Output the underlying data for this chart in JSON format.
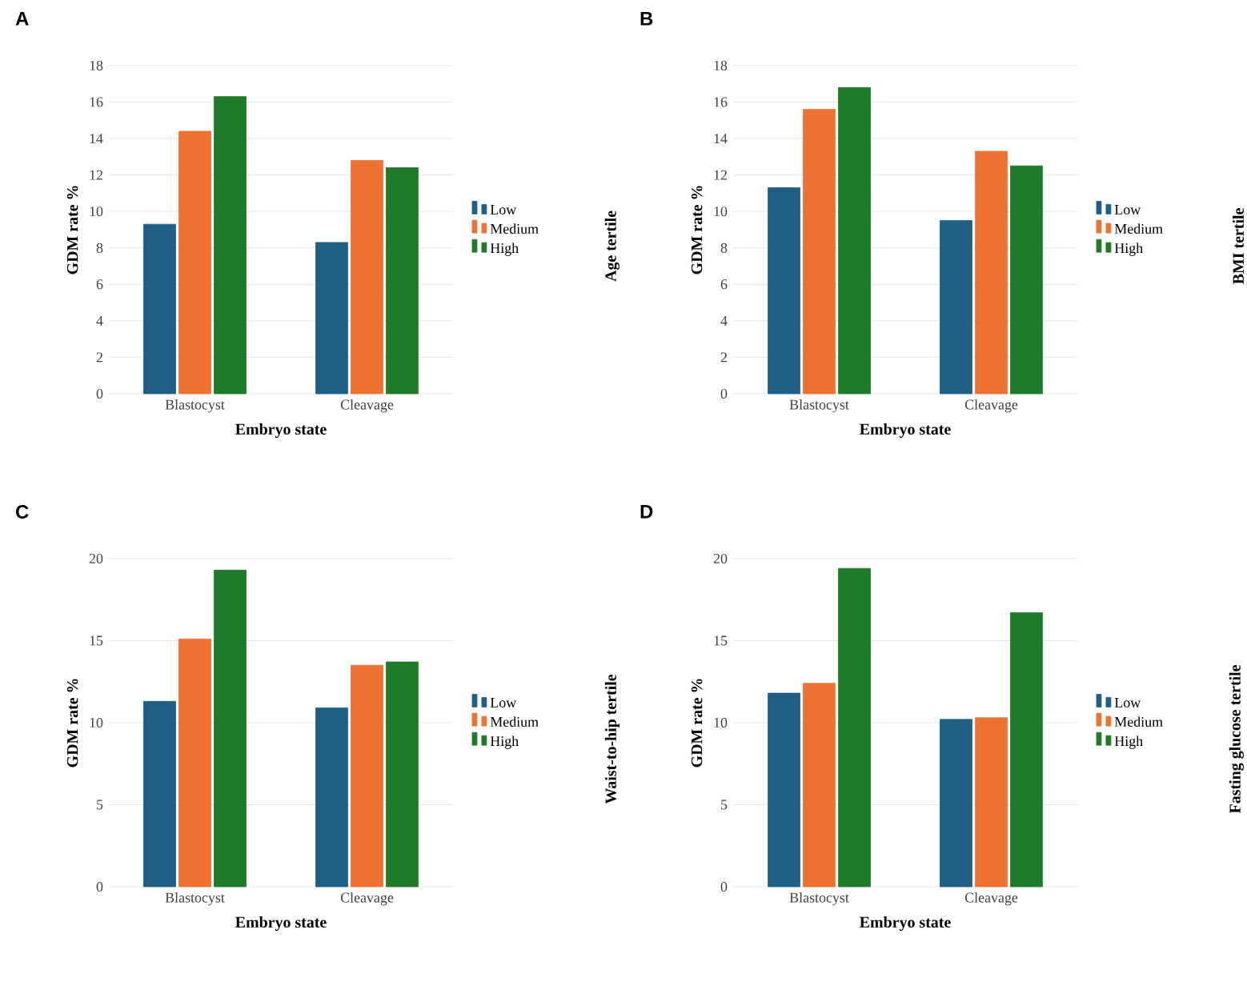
{
  "chart_data": [
    {
      "type": "bar",
      "title": "A",
      "xlabel": "Embryo state",
      "ylabel": "GDM rate %",
      "legend_title": "Age tertile",
      "categories": [
        "Blastocyst",
        "Cleavage"
      ],
      "series": [
        {
          "name": "Low",
          "color": "#1f5f86",
          "values": [
            9.3,
            8.3
          ]
        },
        {
          "name": "Medium",
          "color": "#ed7232",
          "values": [
            14.4,
            12.8
          ]
        },
        {
          "name": "High",
          "color": "#1f7a2a",
          "values": [
            16.3,
            12.4
          ]
        }
      ],
      "ylim": [
        0,
        18
      ],
      "yticks": [
        0,
        2,
        4,
        6,
        8,
        10,
        12,
        14,
        16,
        18
      ],
      "grid": "y",
      "legend": "right"
    },
    {
      "type": "bar",
      "title": "B",
      "xlabel": "Embryo state",
      "ylabel": "GDM rate %",
      "legend_title": "BMI tertile",
      "categories": [
        "Blastocyst",
        "Cleavage"
      ],
      "series": [
        {
          "name": "Low",
          "color": "#1f5f86",
          "values": [
            11.3,
            9.5
          ]
        },
        {
          "name": "Medium",
          "color": "#ed7232",
          "values": [
            15.6,
            13.3
          ]
        },
        {
          "name": "High",
          "color": "#1f7a2a",
          "values": [
            16.8,
            12.5
          ]
        }
      ],
      "ylim": [
        0,
        18
      ],
      "yticks": [
        0,
        2,
        4,
        6,
        8,
        10,
        12,
        14,
        16,
        18
      ],
      "grid": "y",
      "legend": "right"
    },
    {
      "type": "bar",
      "title": "C",
      "xlabel": "Embryo state",
      "ylabel": "GDM rate %",
      "legend_title": "Waist-to-hip tertile",
      "categories": [
        "Blastocyst",
        "Cleavage"
      ],
      "series": [
        {
          "name": "Low",
          "color": "#1f5f86",
          "values": [
            11.3,
            10.9
          ]
        },
        {
          "name": "Medium",
          "color": "#ed7232",
          "values": [
            15.1,
            13.5
          ]
        },
        {
          "name": "High",
          "color": "#1f7a2a",
          "values": [
            19.3,
            13.7
          ]
        }
      ],
      "ylim": [
        0,
        20
      ],
      "yticks": [
        0,
        5,
        10,
        15,
        20
      ],
      "grid": "y",
      "legend": "right"
    },
    {
      "type": "bar",
      "title": "D",
      "xlabel": "Embryo state",
      "ylabel": "GDM rate %",
      "legend_title": "Fasting glucose tertile",
      "categories": [
        "Blastocyst",
        "Cleavage"
      ],
      "series": [
        {
          "name": "Low",
          "color": "#1f5f86",
          "values": [
            11.8,
            10.2
          ]
        },
        {
          "name": "Medium",
          "color": "#ed7232",
          "values": [
            12.4,
            10.3
          ]
        },
        {
          "name": "High",
          "color": "#1f7a2a",
          "values": [
            19.4,
            16.7
          ]
        }
      ],
      "ylim": [
        0,
        20
      ],
      "yticks": [
        0,
        5,
        10,
        15,
        20
      ],
      "grid": "y",
      "legend": "right"
    }
  ]
}
